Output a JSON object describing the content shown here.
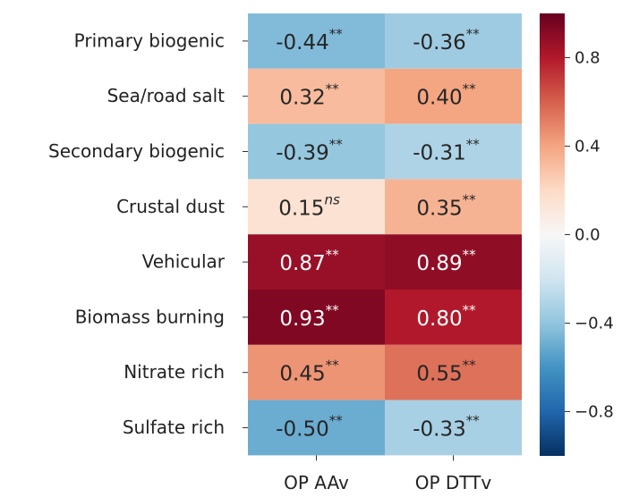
{
  "chart_data": {
    "type": "heatmap",
    "rows": [
      "Primary biogenic",
      "Sea/road salt",
      "Secondary biogenic",
      "Crustal dust",
      "Vehicular",
      "Biomass burning",
      "Nitrate rich",
      "Sulfate rich"
    ],
    "columns": [
      "OP AAv",
      "OP DTTv"
    ],
    "values": [
      [
        -0.44,
        -0.36
      ],
      [
        0.32,
        0.4
      ],
      [
        -0.39,
        -0.31
      ],
      [
        0.15,
        0.35
      ],
      [
        0.87,
        0.89
      ],
      [
        0.93,
        0.8
      ],
      [
        0.45,
        0.55
      ],
      [
        -0.5,
        -0.33
      ]
    ],
    "value_labels": [
      [
        "-0.44",
        "-0.36"
      ],
      [
        "0.32",
        "0.40"
      ],
      [
        "-0.39",
        "-0.31"
      ],
      [
        "0.15",
        "0.35"
      ],
      [
        "0.87",
        "0.89"
      ],
      [
        "0.93",
        "0.80"
      ],
      [
        "0.45",
        "0.55"
      ],
      [
        "-0.50",
        "-0.33"
      ]
    ],
    "significance": [
      [
        "**",
        "**"
      ],
      [
        "**",
        "**"
      ],
      [
        "**",
        "**"
      ],
      [
        "ns",
        "**"
      ],
      [
        "**",
        "**"
      ],
      [
        "**",
        "**"
      ],
      [
        "**",
        "**"
      ],
      [
        "**",
        "**"
      ]
    ],
    "colorbar": {
      "vmin": -1.0,
      "vmax": 1.0,
      "ticks": [
        0.8,
        0.4,
        0.0,
        -0.4,
        -0.8
      ],
      "tick_labels": [
        "0.8",
        "0.4",
        "0.0",
        "−0.4",
        "−0.8"
      ],
      "colormap": "RdBu_r"
    }
  }
}
